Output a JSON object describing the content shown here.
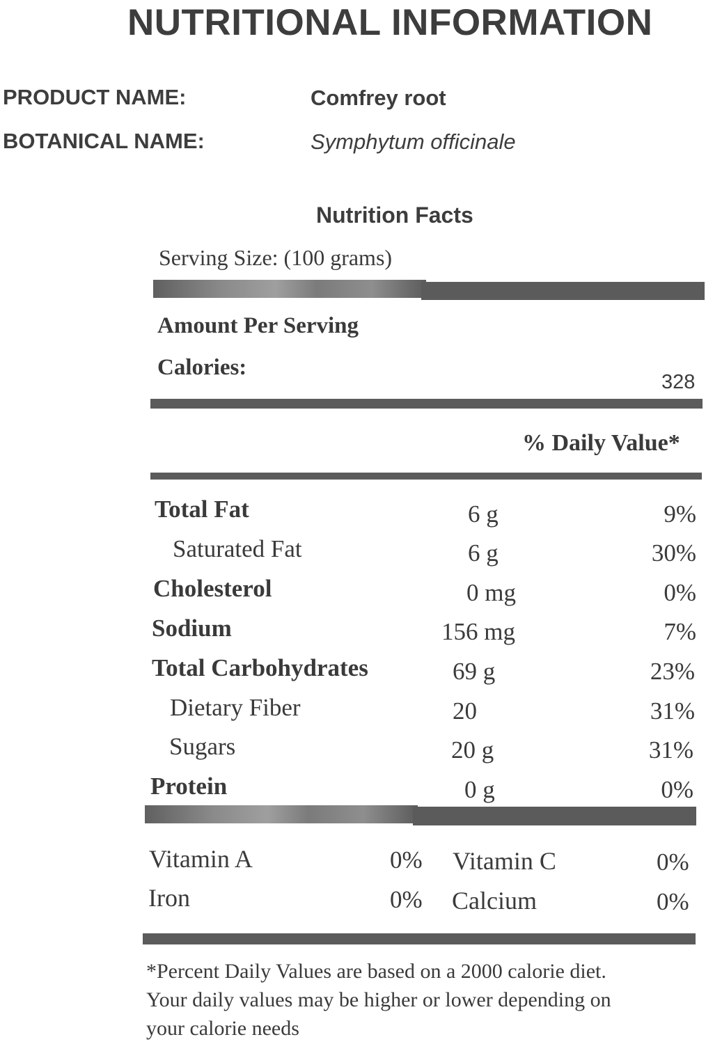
{
  "title": "NUTRITIONAL INFORMATION",
  "product": {
    "name_label": "PRODUCT NAME:",
    "name_value": "Comfrey root",
    "botanical_label": "BOTANICAL NAME:",
    "botanical_value": "Symphytum officinale"
  },
  "facts": {
    "title": "Nutrition Facts",
    "serving_size": "Serving Size: (100 grams)",
    "amount_per_serving": "Amount Per Serving",
    "calories_label": "Calories:",
    "calories_value": "328",
    "daily_value_header": "% Daily Value*",
    "nutrients": [
      {
        "label": "Total Fat",
        "amount": "6 g",
        "pct": "9%"
      },
      {
        "label": "Saturated Fat",
        "amount": "6 g",
        "pct": "30%"
      },
      {
        "label": "Cholesterol",
        "amount": "0 mg",
        "pct": "0%"
      },
      {
        "label": "Sodium",
        "amount": "156 mg",
        "pct": "7%"
      },
      {
        "label": "Total Carbohydrates",
        "amount": "69 g",
        "pct": "23%"
      },
      {
        "label": "Dietary Fiber",
        "amount": "20",
        "pct": "31%"
      },
      {
        "label": "Sugars",
        "amount": "20 g",
        "pct": "31%"
      },
      {
        "label": "Protein",
        "amount": "0 g",
        "pct": "0%"
      }
    ],
    "vitamins": [
      {
        "label": "Vitamin A",
        "pct": "0%"
      },
      {
        "label": "Vitamin C",
        "pct": "0%"
      },
      {
        "label": "Iron",
        "pct": "0%"
      },
      {
        "label": "Calcium",
        "pct": "0%"
      }
    ],
    "footnote": [
      "*Percent Daily Values are based on a 2000 calorie diet.",
      "Your daily values may be higher or lower depending on",
      "your calorie needs"
    ]
  }
}
